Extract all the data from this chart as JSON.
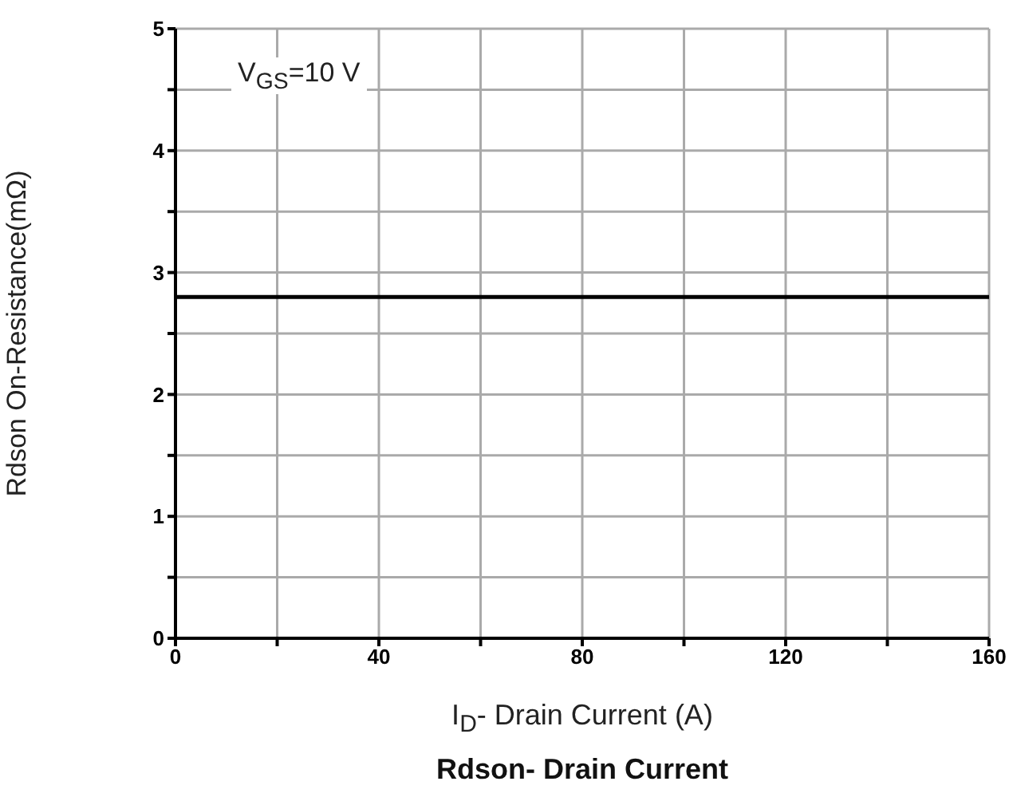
{
  "chart_data": {
    "type": "line",
    "title": "Rdson- Drain Current",
    "xlabel": "I$_{D}$- Drain Current (A)",
    "ylabel": "Rdson On-Resistance(mΩ)",
    "annotations": [
      "V$_{GS}$=10 V"
    ],
    "x": [
      0,
      160
    ],
    "series": [
      {
        "color": "#000000",
        "values": [
          2.8,
          2.8
        ]
      }
    ],
    "xlim": [
      0,
      160
    ],
    "ylim": [
      0,
      5
    ],
    "xticks": [
      0,
      {
        "value": 20,
        "label": null
      },
      40,
      {
        "value": 60,
        "label": null
      },
      80,
      {
        "value": 100,
        "label": null
      },
      120,
      {
        "value": 140,
        "label": null
      },
      160
    ],
    "yticks": [
      0,
      {
        "value": 0.5,
        "label": null
      },
      1,
      {
        "value": 1.5,
        "label": null
      },
      2,
      {
        "value": 2.5,
        "label": null
      },
      3,
      {
        "value": 3.5,
        "label": null
      },
      4,
      {
        "value": 4.5,
        "label": null
      },
      5
    ],
    "grid": true
  }
}
